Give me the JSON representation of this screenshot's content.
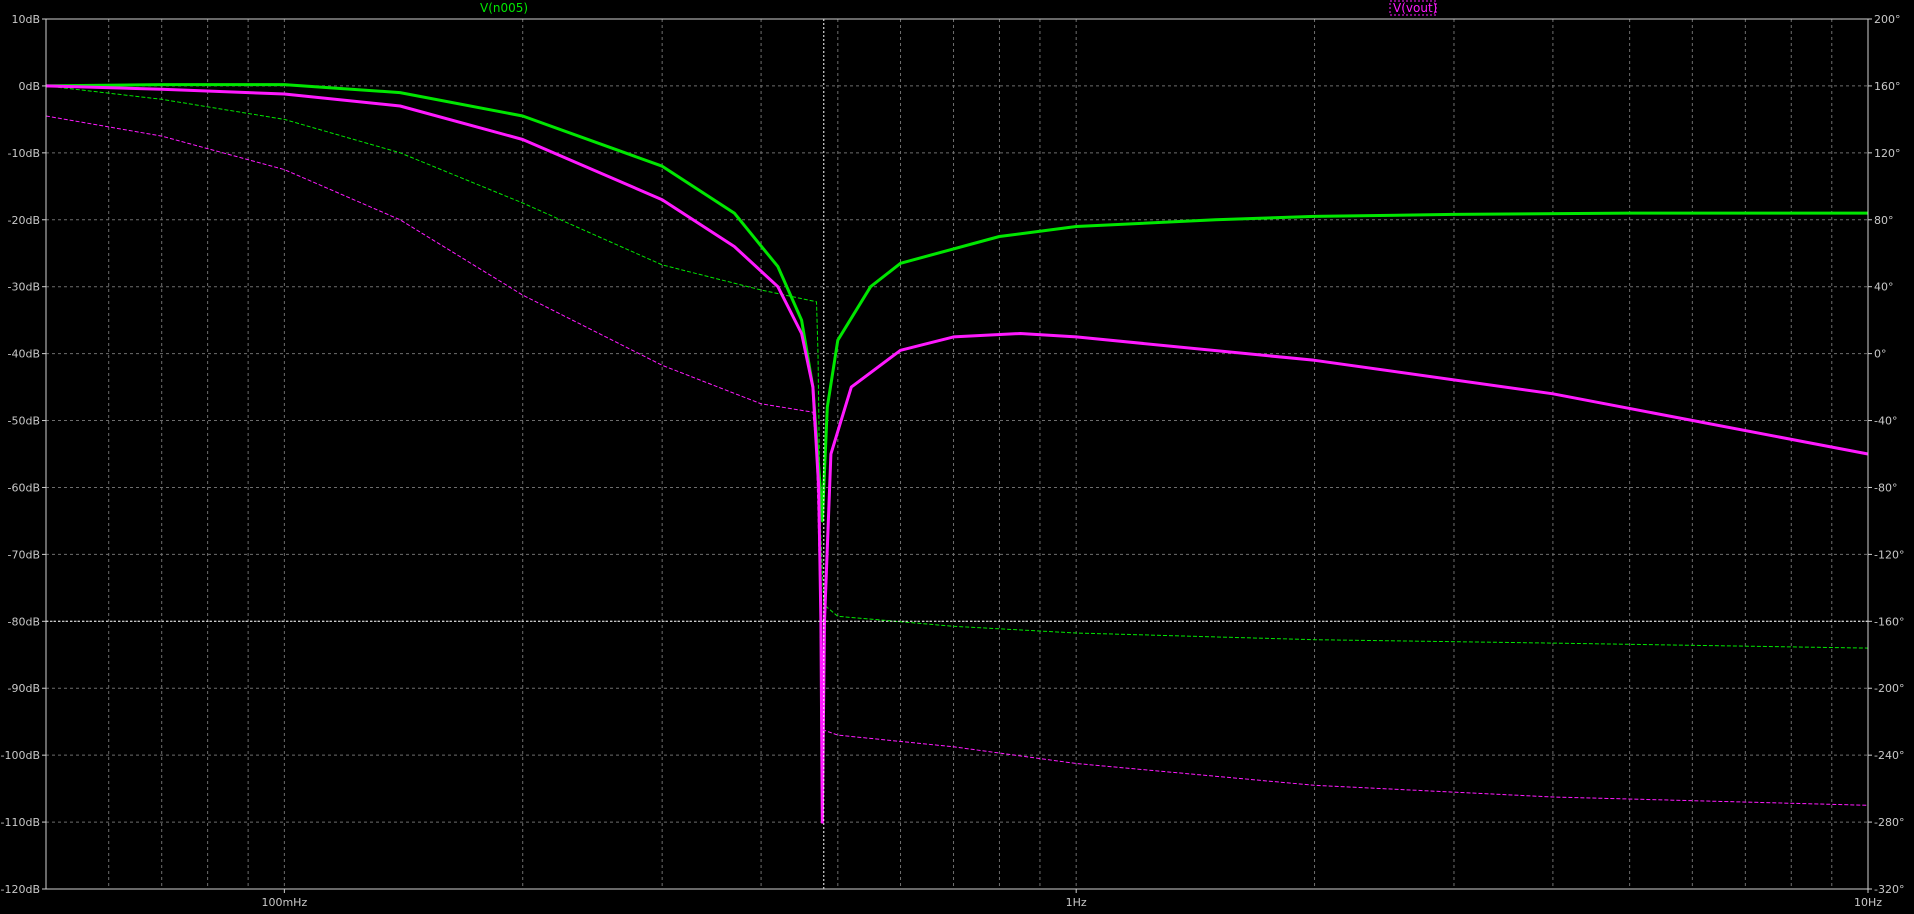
{
  "chart_data": {
    "type": "line",
    "title": "",
    "x_scale": "log",
    "xlim": [
      0.05,
      10
    ],
    "x_tick_labels": [
      {
        "value": 0.1,
        "label": "100mHz"
      },
      {
        "value": 1,
        "label": "1Hz"
      },
      {
        "value": 10,
        "label": "10Hz"
      }
    ],
    "y_left": {
      "unit": "dB",
      "lim": [
        -120,
        10
      ],
      "ticks": [
        10,
        0,
        -10,
        -20,
        -30,
        -40,
        -50,
        -60,
        -70,
        -80,
        -90,
        -100,
        -110,
        -120
      ],
      "tick_labels": [
        "10dB",
        "0dB",
        "-10dB",
        "-20dB",
        "-30dB",
        "-40dB",
        "-50dB",
        "-60dB",
        "-70dB",
        "-80dB",
        "-90dB",
        "-100dB",
        "-110dB",
        "-120dB"
      ]
    },
    "y_right": {
      "unit": "°",
      "lim": [
        -320,
        200
      ],
      "ticks": [
        200,
        160,
        120,
        80,
        40,
        0,
        -40,
        -80,
        -120,
        -160,
        -200,
        -240,
        -280,
        -320
      ],
      "tick_labels": [
        "200°",
        "160°",
        "120°",
        "80°",
        "40°",
        "0°",
        "-40°",
        "-80°",
        "-120°",
        "-160°",
        "-200°",
        "-240°",
        "-280°",
        "-320°"
      ]
    },
    "grid": true,
    "cursor": {
      "x": 0.48,
      "y_db": -80
    },
    "series": [
      {
        "name": "V(n005)",
        "kind": "magnitude",
        "axis": "left",
        "color": "#00e600",
        "points": [
          [
            0.05,
            0
          ],
          [
            0.07,
            0.2
          ],
          [
            0.1,
            0.2
          ],
          [
            0.14,
            -1
          ],
          [
            0.2,
            -4.5
          ],
          [
            0.3,
            -12
          ],
          [
            0.37,
            -19
          ],
          [
            0.42,
            -27
          ],
          [
            0.45,
            -35
          ],
          [
            0.465,
            -45
          ],
          [
            0.475,
            -60
          ],
          [
            0.478,
            -65
          ],
          [
            0.485,
            -48
          ],
          [
            0.5,
            -38
          ],
          [
            0.55,
            -30
          ],
          [
            0.6,
            -26.5
          ],
          [
            0.8,
            -22.5
          ],
          [
            1.0,
            -21
          ],
          [
            1.5,
            -20
          ],
          [
            2,
            -19.5
          ],
          [
            3,
            -19.2
          ],
          [
            5,
            -19
          ],
          [
            10,
            -19
          ]
        ]
      },
      {
        "name": "V(vout)",
        "kind": "magnitude",
        "axis": "left",
        "color": "#ff1aff",
        "points": [
          [
            0.05,
            0
          ],
          [
            0.07,
            -0.5
          ],
          [
            0.1,
            -1.2
          ],
          [
            0.14,
            -3
          ],
          [
            0.2,
            -8
          ],
          [
            0.3,
            -17
          ],
          [
            0.37,
            -24
          ],
          [
            0.42,
            -30
          ],
          [
            0.45,
            -37
          ],
          [
            0.465,
            -45
          ],
          [
            0.473,
            -60
          ],
          [
            0.476,
            -80
          ],
          [
            0.478,
            -110
          ],
          [
            0.481,
            -80
          ],
          [
            0.49,
            -55
          ],
          [
            0.52,
            -45
          ],
          [
            0.6,
            -39.5
          ],
          [
            0.7,
            -37.5
          ],
          [
            0.85,
            -37
          ],
          [
            1.0,
            -37.5
          ],
          [
            2,
            -41
          ],
          [
            4,
            -46
          ],
          [
            10,
            -55
          ]
        ]
      },
      {
        "name": "V(n005)",
        "kind": "phase",
        "axis": "right",
        "color": "#00e600",
        "points": [
          [
            0.05,
            160
          ],
          [
            0.07,
            152
          ],
          [
            0.1,
            140
          ],
          [
            0.14,
            120
          ],
          [
            0.2,
            90
          ],
          [
            0.3,
            53
          ],
          [
            0.4,
            38
          ],
          [
            0.47,
            31
          ],
          [
            0.472,
            0
          ],
          [
            0.475,
            -100
          ],
          [
            0.48,
            -150
          ],
          [
            0.5,
            -157
          ],
          [
            0.7,
            -163
          ],
          [
            1.0,
            -167
          ],
          [
            2,
            -171
          ],
          [
            4,
            -173
          ],
          [
            10,
            -176
          ]
        ]
      },
      {
        "name": "V(vout)",
        "kind": "phase",
        "axis": "right",
        "color": "#ff1aff",
        "points": [
          [
            0.05,
            142
          ],
          [
            0.07,
            130
          ],
          [
            0.1,
            110
          ],
          [
            0.14,
            80
          ],
          [
            0.2,
            35
          ],
          [
            0.3,
            -7
          ],
          [
            0.4,
            -30
          ],
          [
            0.465,
            -35
          ],
          [
            0.47,
            -60
          ],
          [
            0.475,
            -150
          ],
          [
            0.48,
            -225
          ],
          [
            0.5,
            -228
          ],
          [
            0.7,
            -235
          ],
          [
            1.0,
            -245
          ],
          [
            2,
            -258
          ],
          [
            4,
            -265
          ],
          [
            10,
            -270
          ]
        ]
      }
    ]
  },
  "legend": {
    "v_n005": "V(n005)",
    "v_vout": "V(vout)"
  }
}
